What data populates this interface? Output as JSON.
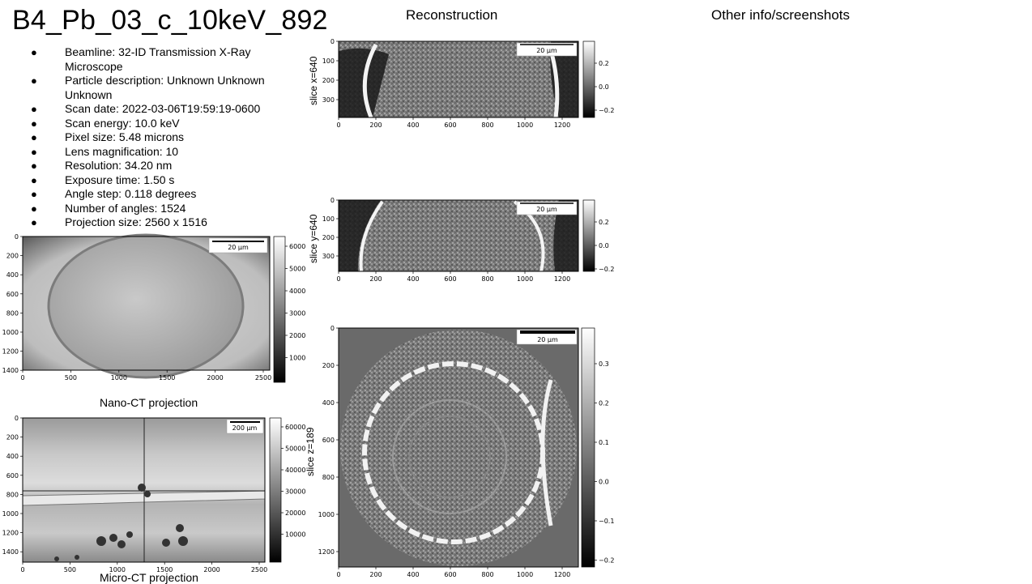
{
  "title": "B4_Pb_03_c_10keV_892",
  "headings": {
    "reconstruction": "Reconstruction",
    "other_info": "Other info/screenshots"
  },
  "metadata": [
    {
      "label": "Beamline: 32-ID Transmission X-Ray Microscope"
    },
    {
      "label": "Particle description: Unknown Unknown Unknown"
    },
    {
      "label": "Scan date: 2022-03-06T19:59:19-0600"
    },
    {
      "label": "Scan energy: 10.0 keV"
    },
    {
      "label": "Pixel size: 5.48 microns"
    },
    {
      "label": "Lens magnification: 10"
    },
    {
      "label": "Resolution: 34.20 nm"
    },
    {
      "label": "Exposure time: 1.50 s"
    },
    {
      "label": "Angle step: 0.118 degrees"
    },
    {
      "label": "Number of angles: 1524"
    },
    {
      "label": "Projection size: 2560 x 1516"
    }
  ],
  "bullet_glyph": "●",
  "figures": {
    "nano": {
      "caption": "Nano-CT projection",
      "scalebar": "20 μm",
      "xticks": [
        "0",
        "500",
        "1000",
        "1500",
        "2000",
        "2500"
      ],
      "yticks": [
        "0",
        "200",
        "400",
        "600",
        "800",
        "1000",
        "1200",
        "1400"
      ],
      "cbar_ticks": [
        "6000",
        "5000",
        "4000",
        "3000",
        "2000",
        "1000"
      ]
    },
    "micro": {
      "caption": "Micro-CT projection",
      "scalebar": "200 μm",
      "xticks": [
        "0",
        "500",
        "1000",
        "1500",
        "2000",
        "2500"
      ],
      "yticks": [
        "0",
        "200",
        "400",
        "600",
        "800",
        "1000",
        "1200",
        "1400"
      ],
      "cbar_ticks": [
        "60000",
        "50000",
        "40000",
        "30000",
        "20000",
        "10000"
      ]
    },
    "slice_x": {
      "ylabel": "slice x=640",
      "scalebar": "20 μm",
      "xticks": [
        "0",
        "200",
        "400",
        "600",
        "800",
        "1000",
        "1200"
      ],
      "yticks": [
        "0",
        "100",
        "200",
        "300"
      ],
      "cbar_ticks": [
        "0.2",
        "0.0",
        "−0.2"
      ]
    },
    "slice_y": {
      "ylabel": "slice y=640",
      "scalebar": "20 μm",
      "xticks": [
        "0",
        "200",
        "400",
        "600",
        "800",
        "1000",
        "1200"
      ],
      "yticks": [
        "0",
        "100",
        "200",
        "300"
      ],
      "cbar_ticks": [
        "0.2",
        "0.0",
        "−0.2"
      ]
    },
    "slice_z": {
      "ylabel": "slice z=189",
      "scalebar": "20 μm",
      "xticks": [
        "0",
        "200",
        "400",
        "600",
        "800",
        "1000",
        "1200"
      ],
      "yticks": [
        "0",
        "200",
        "400",
        "600",
        "800",
        "1000",
        "1200"
      ],
      "cbar_ticks": [
        "0.3",
        "0.2",
        "0.1",
        "0.0",
        "−0.1",
        "−0.2"
      ]
    }
  }
}
